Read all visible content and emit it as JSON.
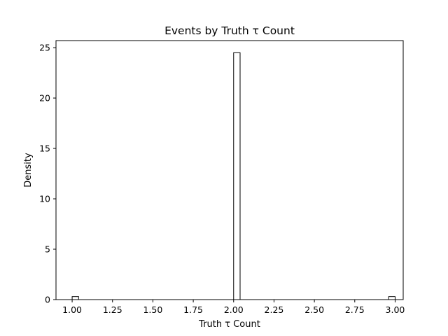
{
  "chart_data": {
    "type": "bar",
    "title": "Events by Truth τ Count",
    "xlabel": "Truth τ Count",
    "ylabel": "Density",
    "xlim": [
      0.9,
      3.05
    ],
    "ylim": [
      0,
      25.7
    ],
    "bin_width": 0.04,
    "grid": false,
    "x_ticks": [
      "1.00",
      "1.25",
      "1.50",
      "1.75",
      "2.00",
      "2.25",
      "2.50",
      "2.75",
      "3.00"
    ],
    "y_ticks": [
      "0",
      "5",
      "10",
      "15",
      "20",
      "25"
    ],
    "bars": [
      {
        "x_start": 1.0,
        "value": 0.3
      },
      {
        "x_start": 2.0,
        "value": 24.5
      },
      {
        "x_start": 2.96,
        "value": 0.3
      }
    ],
    "bar_fill": "none",
    "bar_edge_color": "#000000"
  }
}
